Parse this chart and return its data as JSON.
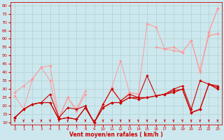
{
  "background_color": "#cce8ee",
  "grid_color": "#aacccc",
  "line_color_dark": "#cc0000",
  "line_color_light": "#ff9999",
  "xlabel": "Vent moyen/en rafales ( km/h )",
  "ylabel_ticks": [
    10,
    15,
    20,
    25,
    30,
    35,
    40,
    45,
    50,
    55,
    60,
    65,
    70,
    75,
    80
  ],
  "xlim": [
    -0.5,
    23.5
  ],
  "ylim": [
    9,
    82
  ],
  "x": [
    0,
    1,
    2,
    3,
    4,
    5,
    6,
    7,
    8,
    9,
    10,
    11,
    12,
    13,
    14,
    15,
    16,
    17,
    18,
    19,
    20,
    21,
    22,
    23
  ],
  "series_light": [
    [
      13,
      18,
      null,
      null,
      null,
      null,
      null,
      null,
      null,
      null,
      null,
      null,
      null,
      null,
      null,
      null,
      null,
      null,
      null,
      null,
      null,
      null,
      64,
      78
    ],
    [
      13,
      18,
      null,
      null,
      null,
      null,
      null,
      null,
      null,
      null,
      null,
      null,
      null,
      null,
      null,
      null,
      null,
      null,
      null,
      null,
      null,
      null,
      62,
      63
    ],
    [
      28,
      32,
      36,
      43,
      44,
      13,
      25,
      18,
      29,
      null,
      20,
      31,
      47,
      28,
      27,
      69,
      67,
      54,
      55,
      52,
      59,
      41,
      64,
      78
    ],
    [
      26,
      18,
      36,
      43,
      35,
      12,
      25,
      17,
      27,
      null,
      20,
      31,
      23,
      28,
      27,
      null,
      55,
      54,
      53,
      52,
      59,
      40,
      62,
      63
    ]
  ],
  "series_dark": [
    [
      13,
      18,
      21,
      22,
      27,
      13,
      19,
      18,
      20,
      10,
      21,
      30,
      23,
      27,
      25,
      38,
      26,
      27,
      30,
      32,
      18,
      35,
      33,
      32
    ],
    [
      13,
      18,
      21,
      22,
      22,
      12,
      13,
      12,
      19,
      10,
      19,
      22,
      22,
      25,
      25,
      25,
      26,
      27,
      29,
      30,
      16,
      18,
      33,
      31
    ],
    [
      13,
      18,
      21,
      22,
      22,
      12,
      13,
      12,
      19,
      10,
      19,
      22,
      22,
      25,
      24,
      25,
      26,
      27,
      28,
      30,
      16,
      18,
      33,
      30
    ],
    [
      13,
      null,
      null,
      null,
      null,
      null,
      null,
      null,
      null,
      null,
      null,
      null,
      null,
      null,
      null,
      null,
      null,
      null,
      null,
      null,
      16,
      18,
      null,
      null
    ]
  ],
  "wind_arrows_x": [
    0,
    1,
    2,
    3,
    4,
    5,
    6,
    7,
    8,
    9,
    10,
    11,
    12,
    13,
    14,
    15,
    16,
    17,
    18,
    19,
    20,
    21,
    22,
    23
  ]
}
